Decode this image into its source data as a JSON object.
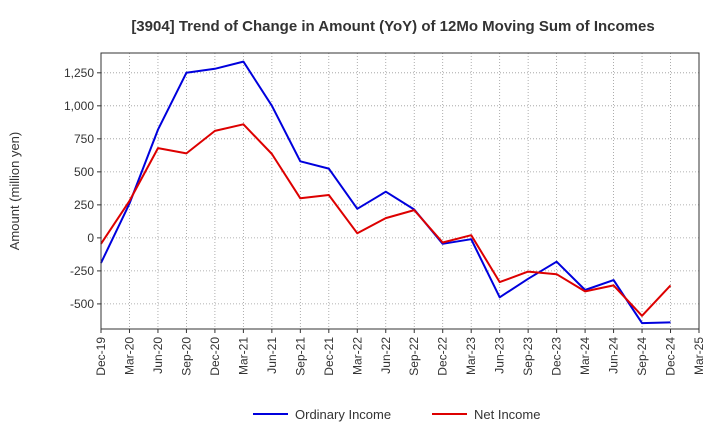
{
  "chart_data": {
    "type": "line",
    "title": "[3904]  Trend of Change in Amount (YoY) of 12Mo Moving Sum of Incomes",
    "xlabel": "",
    "ylabel": "Amount (million yen)",
    "ylim": [
      -690,
      1400
    ],
    "yticks": [
      -500,
      -250,
      0,
      250,
      500,
      750,
      1000,
      1250
    ],
    "ytick_labels": [
      "-500",
      "-250",
      "0",
      "250",
      "500",
      "750",
      "1,000",
      "1,250"
    ],
    "xtick_labels": [
      "Dec-19",
      "Mar-20",
      "Jun-20",
      "Sep-20",
      "Dec-20",
      "Mar-21",
      "Jun-21",
      "Sep-21",
      "Dec-21",
      "Mar-22",
      "Jun-22",
      "Sep-22",
      "Dec-22",
      "Mar-23",
      "Jun-23",
      "Sep-23",
      "Dec-23",
      "Mar-24",
      "Jun-24",
      "Sep-24",
      "Dec-24",
      "Mar-25"
    ],
    "grid": true,
    "legend_position": "bottom",
    "series": [
      {
        "name": "Ordinary Income",
        "color": "#0000dd",
        "values": [
          -190,
          260,
          820,
          1250,
          1280,
          1335,
          1000,
          580,
          525,
          220,
          350,
          215,
          -45,
          -10,
          -450,
          -310,
          -180,
          -395,
          -320,
          -645,
          -640,
          null
        ]
      },
      {
        "name": "Net Income",
        "color": "#dd0000",
        "values": [
          -45,
          280,
          680,
          640,
          810,
          860,
          635,
          300,
          325,
          35,
          150,
          210,
          -35,
          20,
          -335,
          -255,
          -275,
          -405,
          -360,
          -590,
          -360,
          null
        ]
      }
    ]
  }
}
